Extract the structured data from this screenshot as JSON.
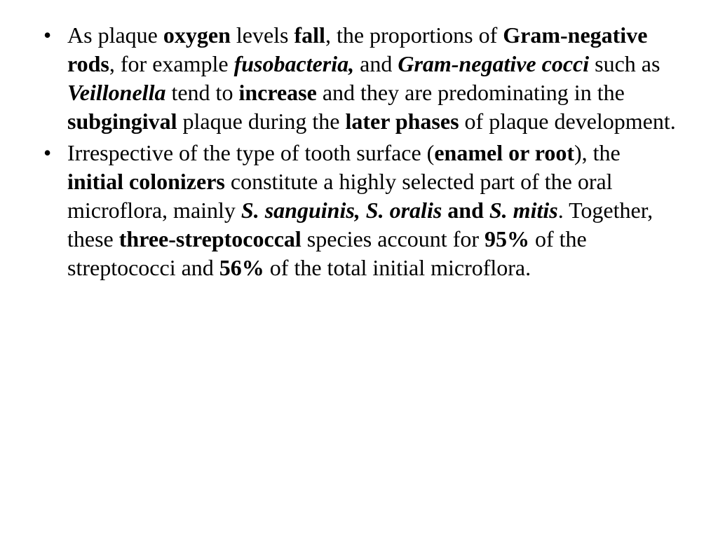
{
  "typography": {
    "font_family": "Times New Roman",
    "font_size_pt": 24,
    "line_height": 1.28,
    "text_color": "#000000",
    "background_color": "#ffffff",
    "bullet_char": "•"
  },
  "bullets": [
    {
      "runs": [
        {
          "t": "As plaque ",
          "s": ""
        },
        {
          "t": "oxygen",
          "s": "b"
        },
        {
          "t": " levels ",
          "s": ""
        },
        {
          "t": "fall",
          "s": "b"
        },
        {
          "t": ", the proportions of ",
          "s": ""
        },
        {
          "t": "Gram-negative rods",
          "s": "b"
        },
        {
          "t": ", for example ",
          "s": ""
        },
        {
          "t": "fusobacteria,",
          "s": "bi"
        },
        {
          "t": " and ",
          "s": ""
        },
        {
          "t": "Gram-negative cocci",
          "s": "bi"
        },
        {
          "t": " such as ",
          "s": ""
        },
        {
          "t": "Veillonella",
          "s": "bi"
        },
        {
          "t": " tend to ",
          "s": ""
        },
        {
          "t": "increase",
          "s": "b"
        },
        {
          "t": " and they are predominating in the ",
          "s": ""
        },
        {
          "t": "subgingival",
          "s": "b"
        },
        {
          "t": " plaque during the ",
          "s": ""
        },
        {
          "t": "later phases",
          "s": "b"
        },
        {
          "t": " of plaque development.",
          "s": ""
        }
      ]
    },
    {
      "runs": [
        {
          "t": "Irrespective of the type of tooth surface (",
          "s": ""
        },
        {
          "t": "enamel or root",
          "s": "b"
        },
        {
          "t": "), the ",
          "s": ""
        },
        {
          "t": "initial colonizers",
          "s": "b"
        },
        {
          "t": " constitute a highly selected part of the oral microflora, mainly ",
          "s": ""
        },
        {
          "t": "S. sanguinis, S. oralis ",
          "s": "bi"
        },
        {
          "t": "and",
          "s": "b"
        },
        {
          "t": " S. mitis",
          "s": "bi"
        },
        {
          "t": ". Together, these ",
          "s": ""
        },
        {
          "t": "three-streptococcal",
          "s": "b"
        },
        {
          "t": " species account for ",
          "s": ""
        },
        {
          "t": "95%",
          "s": "b"
        },
        {
          "t": " of the streptococci and ",
          "s": ""
        },
        {
          "t": "56%",
          "s": "b"
        },
        {
          "t": " of the total initial microflora.",
          "s": ""
        }
      ]
    }
  ]
}
